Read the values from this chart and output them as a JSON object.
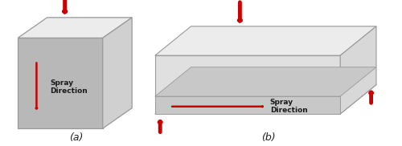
{
  "background_color": "#ffffff",
  "label_a": "(a)",
  "label_b": "(b)",
  "arrow_color": "#cc0000",
  "cube_top_color": "#ececec",
  "cube_front_color": "#b8b8b8",
  "cube_side_color": "#d0d0d0",
  "rect_top_color": "#ececec",
  "rect_front_color": "#e0e0e0",
  "rect_side_color": "#d8d8d8",
  "rect_bottom_strip_color": "#c8c8c8",
  "edge_color": "#999999",
  "spray_text_color": "#1a1a1a",
  "spray_label_a": "Spray\nDirection",
  "spray_label_b": "Spray\nDirection",
  "font_size_label": 6.5,
  "font_size_ab": 9
}
